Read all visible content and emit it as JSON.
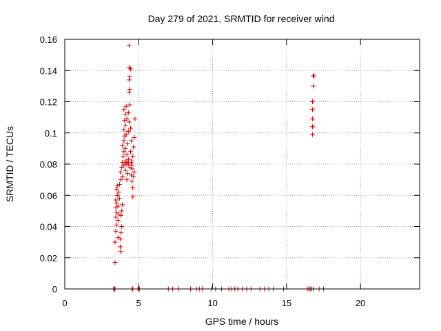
{
  "chart_data": {
    "type": "scatter",
    "title": "Day 279 of 2021, SRMTID for receiver wind",
    "xlabel": "GPS time / hours",
    "ylabel": "SRMTID / TECUs",
    "xlim": [
      0,
      24
    ],
    "ylim": [
      0,
      0.16
    ],
    "xticks": [
      0,
      5,
      10,
      15,
      20
    ],
    "yticks": [
      0,
      0.02,
      0.04,
      0.06,
      0.08,
      0.1,
      0.12,
      0.14,
      0.16
    ],
    "xtick_labels": [
      "0",
      "5",
      "10",
      "15",
      "20"
    ],
    "ytick_labels": [
      "0",
      "0.02",
      "0.04",
      "0.06",
      "0.08",
      "0.1",
      "0.12",
      "0.14",
      "0.16"
    ],
    "grid": true,
    "marker": "+",
    "color": "#cc0000",
    "series": [
      {
        "points": [
          [
            3.4,
            0.017
          ],
          [
            3.4,
            0.03
          ],
          [
            3.45,
            0.037
          ],
          [
            3.5,
            0.041
          ],
          [
            3.45,
            0.046
          ],
          [
            3.5,
            0.049
          ],
          [
            3.45,
            0.052
          ],
          [
            3.5,
            0.055
          ],
          [
            3.45,
            0.057
          ],
          [
            3.55,
            0.06
          ],
          [
            3.5,
            0.064
          ],
          [
            3.55,
            0.066
          ],
          [
            3.6,
            0.033
          ],
          [
            3.6,
            0.044
          ],
          [
            3.65,
            0.048
          ],
          [
            3.6,
            0.053
          ],
          [
            3.7,
            0.058
          ],
          [
            3.65,
            0.062
          ],
          [
            3.7,
            0.067
          ],
          [
            3.75,
            0.027
          ],
          [
            3.8,
            0.024
          ],
          [
            3.75,
            0.032
          ],
          [
            3.8,
            0.036
          ],
          [
            3.85,
            0.04
          ],
          [
            3.8,
            0.047
          ],
          [
            3.85,
            0.05
          ],
          [
            3.9,
            0.054
          ],
          [
            3.8,
            0.07
          ],
          [
            3.9,
            0.072
          ],
          [
            3.75,
            0.075
          ],
          [
            3.85,
            0.078
          ],
          [
            3.9,
            0.081
          ],
          [
            3.95,
            0.085
          ],
          [
            4.0,
            0.088
          ],
          [
            3.9,
            0.092
          ],
          [
            4.0,
            0.095
          ],
          [
            4.05,
            0.098
          ],
          [
            4.0,
            0.102
          ],
          [
            4.1,
            0.105
          ],
          [
            4.05,
            0.108
          ],
          [
            4.1,
            0.112
          ],
          [
            4.0,
            0.115
          ],
          [
            4.15,
            0.117
          ],
          [
            4.2,
            0.109
          ],
          [
            4.15,
            0.099
          ],
          [
            4.1,
            0.09
          ],
          [
            4.2,
            0.086
          ],
          [
            4.15,
            0.08
          ],
          [
            4.1,
            0.076
          ],
          [
            4.25,
            0.074
          ],
          [
            4.2,
            0.07
          ],
          [
            4.3,
            0.083
          ],
          [
            4.25,
            0.093
          ],
          [
            4.3,
            0.101
          ],
          [
            4.35,
            0.107
          ],
          [
            4.3,
            0.113
          ],
          [
            4.4,
            0.118
          ],
          [
            4.35,
            0.126
          ],
          [
            4.4,
            0.128
          ],
          [
            4.35,
            0.134
          ],
          [
            4.4,
            0.136
          ],
          [
            4.45,
            0.141
          ],
          [
            4.35,
            0.142
          ],
          [
            4.35,
            0.156
          ],
          [
            4.45,
            0.103
          ],
          [
            4.5,
            0.095
          ],
          [
            4.45,
            0.088
          ],
          [
            4.5,
            0.081
          ],
          [
            4.55,
            0.077
          ],
          [
            4.5,
            0.073
          ],
          [
            4.55,
            0.069
          ],
          [
            4.6,
            0.065
          ],
          [
            4.55,
            0.079
          ],
          [
            4.6,
            0.085
          ],
          [
            4.65,
            0.091
          ],
          [
            4.6,
            0.059
          ],
          [
            4.7,
            0.075
          ],
          [
            4.65,
            0.072
          ],
          [
            4.7,
            0.097
          ],
          [
            4.75,
            0.109
          ],
          [
            4.1,
            0.082
          ],
          [
            4.2,
            0.081
          ],
          [
            4.3,
            0.08
          ],
          [
            4.4,
            0.078
          ],
          [
            4.5,
            0.082
          ],
          [
            4.0,
            0.079
          ],
          [
            16.75,
            0.099
          ],
          [
            16.75,
            0.104
          ],
          [
            16.75,
            0.109
          ],
          [
            16.75,
            0.115
          ],
          [
            16.75,
            0.12
          ],
          [
            16.8,
            0.13
          ],
          [
            16.8,
            0.136
          ],
          [
            16.85,
            0.137
          ],
          [
            3.3,
            0
          ],
          [
            3.35,
            0
          ],
          [
            3.4,
            0
          ],
          [
            4.55,
            0
          ],
          [
            4.6,
            0
          ],
          [
            4.95,
            0
          ],
          [
            5.0,
            0
          ],
          [
            5.05,
            0
          ],
          [
            7.0,
            0
          ],
          [
            7.3,
            0
          ],
          [
            7.7,
            0
          ],
          [
            8.5,
            0
          ],
          [
            8.9,
            0
          ],
          [
            9.1,
            0
          ],
          [
            9.3,
            0
          ],
          [
            9.9,
            0
          ],
          [
            10.2,
            0
          ],
          [
            10.6,
            0
          ],
          [
            11.1,
            0
          ],
          [
            11.3,
            0
          ],
          [
            11.5,
            0
          ],
          [
            11.7,
            0
          ],
          [
            12.0,
            0
          ],
          [
            12.3,
            0
          ],
          [
            12.6,
            0
          ],
          [
            13.2,
            0
          ],
          [
            13.5,
            0
          ],
          [
            13.8,
            0
          ],
          [
            14.1,
            0
          ],
          [
            14.8,
            0
          ],
          [
            16.4,
            0
          ],
          [
            16.5,
            0
          ],
          [
            16.6,
            0
          ],
          [
            16.7,
            0
          ],
          [
            16.8,
            0
          ],
          [
            17.2,
            0
          ],
          [
            17.5,
            0
          ]
        ]
      }
    ]
  }
}
